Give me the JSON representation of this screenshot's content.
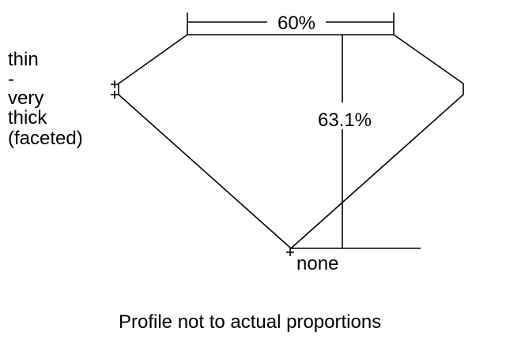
{
  "girdle_label": [
    "thin",
    "-",
    "very",
    "thick",
    "(faceted)"
  ],
  "table_label": "60%",
  "depth_label": "63.1%",
  "culet_label": "none",
  "caption": "Profile not to actual proportions"
}
